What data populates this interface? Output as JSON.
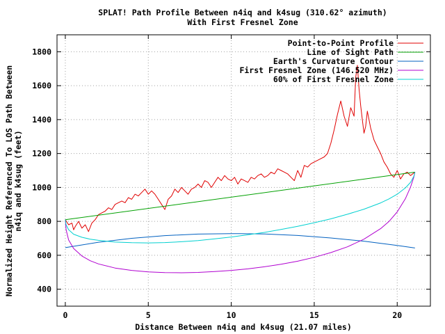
{
  "chart_data": {
    "type": "line",
    "title": "SPLAT! Path Profile Between n4iq and k4sug (310.62° azimuth)",
    "subtitle": "With First Fresnel Zone",
    "xlabel": "Distance Between n4iq and k4sug (21.07 miles)",
    "ylabel_line1": "Normalized Height Referenced To LOS Path Between",
    "ylabel_line2": "n4iq and k4sug (feet)",
    "xlim": [
      -0.5,
      22.0
    ],
    "ylim": [
      300,
      1900
    ],
    "xticks": [
      0,
      5,
      10,
      15,
      20
    ],
    "yticks": [
      400,
      600,
      800,
      1000,
      1200,
      1400,
      1600,
      1800
    ],
    "grid": true,
    "legend_position": "top-right",
    "series": [
      {
        "name": "Point-to-Point Profile",
        "color": "#e00000",
        "x": [
          0,
          0.2,
          0.4,
          0.5,
          0.6,
          0.8,
          1.0,
          1.2,
          1.4,
          1.6,
          1.8,
          2.0,
          2.2,
          2.4,
          2.6,
          2.8,
          3.0,
          3.2,
          3.4,
          3.6,
          3.8,
          4.0,
          4.2,
          4.4,
          4.6,
          4.8,
          5.0,
          5.2,
          5.4,
          5.6,
          5.8,
          6.0,
          6.2,
          6.4,
          6.6,
          6.8,
          7.0,
          7.2,
          7.4,
          7.6,
          7.8,
          8.0,
          8.2,
          8.4,
          8.6,
          8.8,
          9.0,
          9.2,
          9.4,
          9.6,
          9.8,
          10.0,
          10.2,
          10.4,
          10.6,
          10.8,
          11.0,
          11.2,
          11.4,
          11.6,
          11.8,
          12.0,
          12.2,
          12.4,
          12.6,
          12.8,
          13.0,
          13.2,
          13.4,
          13.6,
          13.8,
          14.0,
          14.2,
          14.4,
          14.6,
          14.8,
          15.0,
          15.2,
          15.4,
          15.6,
          15.8,
          16.0,
          16.2,
          16.4,
          16.6,
          16.8,
          17.0,
          17.2,
          17.4,
          17.5,
          17.6,
          17.7,
          17.8,
          17.9,
          18.0,
          18.1,
          18.2,
          18.4,
          18.6,
          18.8,
          19.0,
          19.2,
          19.4,
          19.6,
          19.8,
          20.0,
          20.2,
          20.4,
          20.6,
          20.8,
          21.07
        ],
        "y": [
          810,
          780,
          790,
          750,
          770,
          800,
          760,
          780,
          740,
          790,
          810,
          840,
          850,
          860,
          880,
          870,
          900,
          910,
          920,
          910,
          940,
          930,
          960,
          950,
          970,
          990,
          960,
          980,
          960,
          930,
          900,
          870,
          930,
          950,
          990,
          970,
          1000,
          980,
          960,
          990,
          1000,
          1020,
          1000,
          1040,
          1030,
          1000,
          1030,
          1060,
          1040,
          1070,
          1050,
          1040,
          1060,
          1020,
          1050,
          1040,
          1030,
          1060,
          1050,
          1070,
          1080,
          1060,
          1070,
          1090,
          1080,
          1110,
          1100,
          1090,
          1080,
          1060,
          1040,
          1100,
          1060,
          1130,
          1120,
          1140,
          1150,
          1160,
          1170,
          1180,
          1200,
          1260,
          1340,
          1430,
          1510,
          1420,
          1360,
          1470,
          1420,
          1650,
          1720,
          1580,
          1480,
          1400,
          1320,
          1360,
          1450,
          1350,
          1280,
          1240,
          1200,
          1150,
          1120,
          1080,
          1060,
          1100,
          1050,
          1080,
          1090,
          1070,
          1090
        ]
      },
      {
        "name": "Line of Sight Path",
        "color": "#00a000",
        "x": [
          0,
          21.07
        ],
        "y": [
          810,
          1090
        ]
      },
      {
        "name": "Earth's Curvature Contour",
        "color": "#0060c0",
        "x": [
          0,
          2,
          4,
          6,
          8,
          10,
          10.5,
          12,
          14,
          16,
          18,
          20,
          21.07
        ],
        "y": [
          645,
          677,
          700,
          716,
          725,
          728,
          728,
          726,
          717,
          702,
          683,
          658,
          643
        ]
      },
      {
        "name": "First Fresnel Zone (146.520 MHz)",
        "color": "#b000d0",
        "x": [
          0,
          0.05,
          0.2,
          0.5,
          1,
          1.5,
          2,
          3,
          4,
          5,
          6,
          7,
          8,
          9,
          10,
          11,
          12,
          13,
          14,
          15,
          16,
          17,
          18,
          19,
          19.5,
          20,
          20.5,
          20.8,
          21.0,
          21.07
        ],
        "y": [
          810,
          750,
          690,
          640,
          596,
          568,
          549,
          525,
          511,
          502,
          498,
          497,
          499,
          504,
          511,
          520,
          532,
          547,
          565,
          588,
          616,
          650,
          695,
          757,
          799,
          856,
          935,
          1002,
          1060,
          1090
        ]
      },
      {
        "name": "60% of First Fresnel Zone",
        "color": "#00d0d0",
        "x": [
          0,
          0.05,
          0.2,
          0.5,
          1,
          1.5,
          2,
          3,
          4,
          5,
          6,
          7,
          8,
          9,
          10,
          11,
          12,
          13,
          14,
          15,
          16,
          17,
          18,
          19,
          19.5,
          20,
          20.5,
          20.8,
          21.0,
          21.07
        ],
        "y": [
          810,
          779,
          751,
          724,
          706,
          695,
          688,
          678,
          674,
          673,
          675,
          680,
          687,
          697,
          708,
          721,
          735,
          752,
          771,
          792,
          815,
          842,
          872,
          909,
          932,
          960,
          998,
          1030,
          1065,
          1090
        ]
      }
    ]
  }
}
